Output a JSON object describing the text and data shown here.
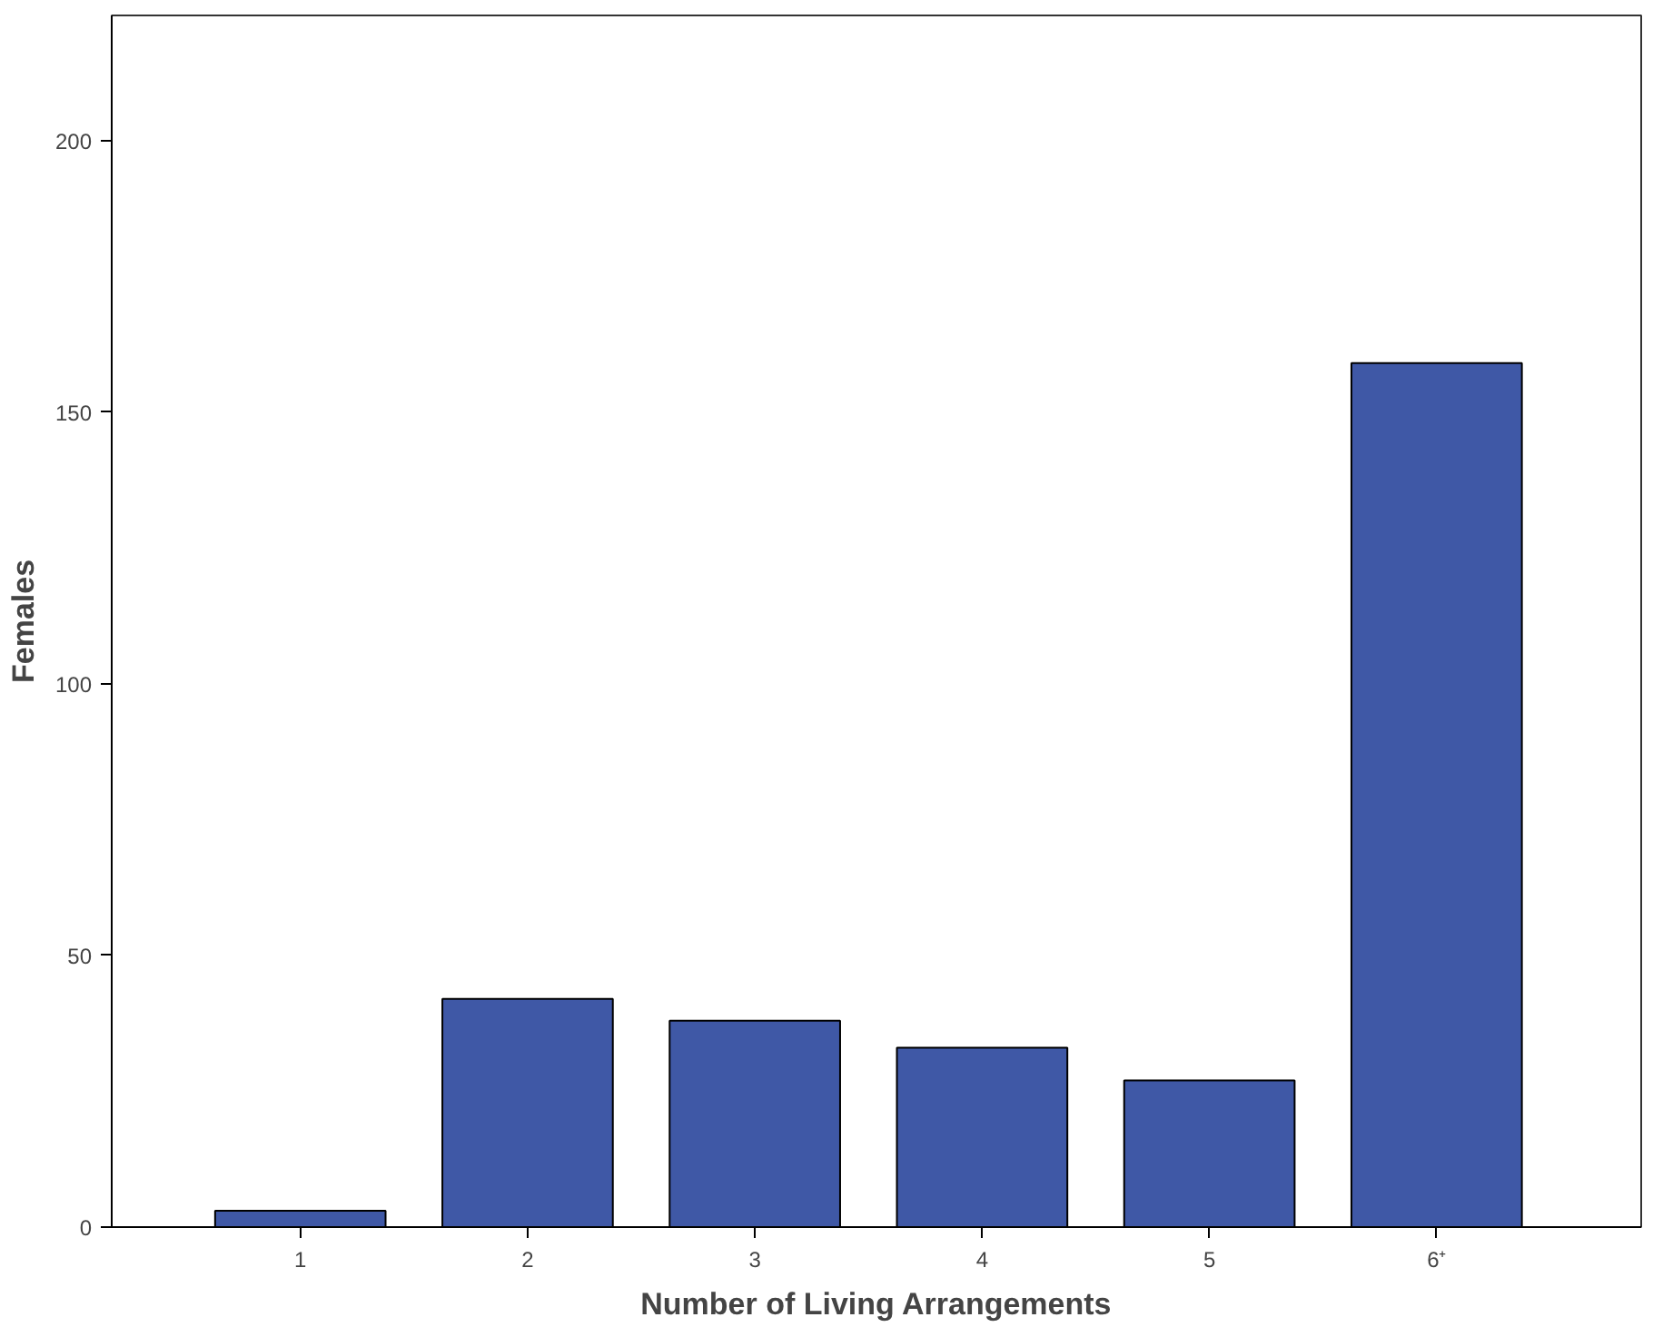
{
  "chart_data": {
    "type": "bar",
    "xlabel": "Number of Living Arrangements",
    "ylabel": "Females",
    "categories": [
      "1",
      "2",
      "3",
      "4",
      "5",
      "6⁺"
    ],
    "values": [
      3,
      42,
      38,
      33,
      27,
      159
    ],
    "color": "#3f58a6",
    "ylim": [
      0,
      223
    ],
    "yticks": [
      0,
      50,
      100,
      150,
      200
    ],
    "grid": false
  }
}
